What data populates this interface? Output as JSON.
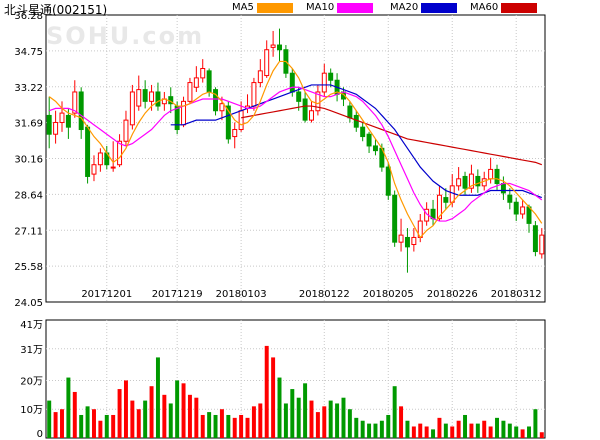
{
  "header": {
    "title": "北斗星通(002151)",
    "watermark": "SOHU.com"
  },
  "legend": [
    {
      "label": "MA5",
      "color": "#ff9900"
    },
    {
      "label": "MA10",
      "color": "#ff00ff"
    },
    {
      "label": "MA20",
      "color": "#0000cc"
    },
    {
      "label": "MA60",
      "color": "#cc0000"
    }
  ],
  "chart_data": {
    "type": "candlestick",
    "colors": {
      "up": "#ff0000",
      "down": "#009900",
      "ma5": "#ff9900",
      "ma10": "#ff00ff",
      "ma20": "#0000cc",
      "ma60": "#cc0000"
    },
    "price_axis": {
      "ylim": [
        24.05,
        36.28
      ],
      "ticks": [
        "36.28",
        "34.75",
        "33.22",
        "31.69",
        "30.16",
        "28.64",
        "27.11",
        "25.58",
        "24.05"
      ]
    },
    "volume_axis": {
      "ylim": [
        0,
        41
      ],
      "ticks": [
        {
          "v": 41,
          "label": "41万"
        },
        {
          "v": 31,
          "label": "31万"
        },
        {
          "v": 20,
          "label": "20万"
        },
        {
          "v": 10,
          "label": "10万"
        },
        {
          "v": 0,
          "label": "0"
        }
      ]
    },
    "date_ticks": [
      {
        "index": 9,
        "label": "20171201"
      },
      {
        "index": 20,
        "label": "20171219"
      },
      {
        "index": 30,
        "label": "20180103"
      },
      {
        "index": 43,
        "label": "20180122"
      },
      {
        "index": 53,
        "label": "20180205"
      },
      {
        "index": 63,
        "label": "20180226"
      },
      {
        "index": 73,
        "label": "20180312"
      }
    ],
    "candles": [
      [
        32.0,
        31.2,
        32.8,
        30.6
      ],
      [
        31.2,
        31.7,
        32.2,
        30.8
      ],
      [
        31.7,
        32.1,
        32.6,
        31.3
      ],
      [
        32.0,
        31.5,
        32.3,
        31.0
      ],
      [
        32.1,
        33.0,
        33.5,
        31.9
      ],
      [
        33.0,
        31.4,
        33.2,
        31.0
      ],
      [
        31.5,
        29.4,
        31.6,
        29.1
      ],
      [
        29.5,
        29.9,
        30.3,
        29.2
      ],
      [
        29.9,
        30.4,
        30.6,
        29.6
      ],
      [
        30.4,
        29.9,
        30.7,
        29.7
      ],
      [
        29.8,
        29.8,
        30.9,
        29.6
      ],
      [
        29.9,
        30.9,
        31.2,
        29.8
      ],
      [
        30.9,
        31.8,
        32.2,
        30.7
      ],
      [
        31.6,
        33.0,
        33.3,
        31.4
      ],
      [
        32.4,
        33.1,
        33.7,
        32.2
      ],
      [
        33.1,
        32.6,
        33.5,
        32.3
      ],
      [
        32.6,
        33.0,
        33.3,
        32.2
      ],
      [
        33.0,
        32.4,
        33.4,
        32.2
      ],
      [
        32.5,
        32.7,
        33.0,
        32.2
      ],
      [
        32.8,
        32.5,
        33.2,
        32.1
      ],
      [
        32.4,
        31.4,
        32.6,
        31.2
      ],
      [
        31.6,
        32.6,
        32.8,
        31.5
      ],
      [
        32.6,
        33.4,
        33.6,
        32.5
      ],
      [
        33.2,
        33.6,
        34.1,
        33.0
      ],
      [
        33.6,
        34.0,
        34.4,
        33.4
      ],
      [
        33.9,
        33.0,
        34.0,
        32.8
      ],
      [
        33.1,
        32.2,
        33.2,
        32.0
      ],
      [
        32.2,
        32.5,
        32.8,
        31.8
      ],
      [
        32.4,
        31.0,
        32.6,
        30.8
      ],
      [
        31.1,
        31.4,
        31.7,
        30.6
      ],
      [
        31.4,
        32.2,
        32.6,
        31.3
      ],
      [
        32.3,
        32.4,
        32.9,
        32.1
      ],
      [
        32.4,
        33.4,
        33.6,
        32.2
      ],
      [
        33.4,
        33.9,
        34.4,
        33.2
      ],
      [
        33.7,
        34.8,
        35.2,
        33.6
      ],
      [
        34.9,
        35.0,
        35.6,
        34.5
      ],
      [
        35.0,
        34.8,
        35.7,
        34.3
      ],
      [
        34.8,
        33.8,
        35.0,
        33.6
      ],
      [
        33.8,
        33.0,
        34.0,
        32.8
      ],
      [
        33.0,
        32.6,
        33.2,
        32.2
      ],
      [
        32.7,
        31.8,
        33.0,
        31.7
      ],
      [
        31.8,
        32.2,
        32.6,
        31.7
      ],
      [
        32.2,
        33.0,
        33.3,
        32.0
      ],
      [
        33.0,
        33.8,
        34.2,
        32.8
      ],
      [
        33.8,
        33.5,
        34.0,
        33.2
      ],
      [
        33.5,
        32.9,
        33.8,
        32.6
      ],
      [
        33.0,
        32.7,
        33.2,
        32.4
      ],
      [
        32.4,
        31.9,
        32.6,
        31.7
      ],
      [
        32.0,
        31.5,
        32.2,
        31.3
      ],
      [
        31.5,
        31.1,
        31.7,
        30.9
      ],
      [
        31.2,
        30.7,
        31.3,
        30.4
      ],
      [
        30.7,
        30.5,
        31.0,
        30.3
      ],
      [
        30.6,
        29.8,
        30.8,
        29.6
      ],
      [
        29.8,
        28.6,
        30.0,
        28.4
      ],
      [
        28.6,
        26.6,
        28.8,
        26.4
      ],
      [
        26.6,
        26.9,
        27.6,
        26.2
      ],
      [
        26.8,
        26.4,
        27.2,
        25.3
      ],
      [
        26.5,
        26.8,
        27.2,
        26.2
      ],
      [
        26.8,
        27.5,
        27.8,
        26.6
      ],
      [
        27.5,
        28.0,
        28.3,
        27.3
      ],
      [
        28.0,
        27.6,
        28.4,
        27.3
      ],
      [
        27.6,
        28.6,
        29.0,
        27.5
      ],
      [
        28.5,
        28.3,
        28.9,
        28.0
      ],
      [
        28.3,
        29.0,
        29.5,
        28.1
      ],
      [
        29.0,
        29.3,
        29.8,
        28.8
      ],
      [
        29.4,
        28.9,
        29.6,
        28.6
      ],
      [
        28.9,
        29.5,
        29.9,
        28.7
      ],
      [
        29.4,
        29.0,
        29.7,
        28.7
      ],
      [
        29.0,
        29.3,
        29.6,
        28.8
      ],
      [
        29.3,
        29.7,
        30.2,
        29.1
      ],
      [
        29.7,
        29.1,
        29.9,
        28.8
      ],
      [
        29.1,
        28.7,
        29.4,
        28.4
      ],
      [
        28.6,
        28.3,
        28.9,
        28.0
      ],
      [
        28.3,
        27.8,
        28.5,
        27.5
      ],
      [
        27.8,
        28.1,
        28.4,
        27.6
      ],
      [
        28.1,
        27.4,
        28.2,
        27.0
      ],
      [
        27.3,
        26.2,
        27.5,
        26.0
      ],
      [
        26.1,
        26.9,
        27.2,
        25.9
      ]
    ],
    "ma5": [
      32.8,
      32.6,
      32.3,
      32.1,
      32.0,
      31.9,
      31.5,
      31.1,
      30.8,
      30.4,
      30.0,
      30.2,
      30.6,
      31.2,
      31.7,
      32.1,
      32.4,
      32.6,
      32.7,
      32.6,
      32.4,
      32.4,
      32.5,
      32.7,
      32.9,
      33.0,
      32.9,
      32.6,
      32.2,
      31.8,
      31.6,
      31.7,
      32.0,
      32.6,
      33.3,
      33.9,
      34.3,
      34.3,
      34.0,
      33.6,
      33.0,
      32.6,
      32.5,
      32.7,
      32.9,
      33.0,
      32.9,
      32.6,
      32.2,
      31.8,
      31.4,
      31.0,
      30.6,
      30.0,
      29.1,
      28.4,
      27.8,
      27.3,
      26.8,
      27.1,
      27.3,
      27.7,
      28.0,
      28.3,
      28.6,
      28.8,
      29.0,
      29.1,
      29.2,
      29.3,
      29.3,
      29.2,
      29.0,
      28.7,
      28.4,
      28.1,
      27.8,
      27.4
    ],
    "ma10": [
      32.2,
      32.3,
      32.3,
      32.3,
      32.2,
      32.0,
      31.8,
      31.6,
      31.4,
      31.2,
      31.0,
      30.8,
      30.7,
      30.8,
      31.0,
      31.2,
      31.4,
      31.7,
      32.0,
      32.2,
      32.3,
      32.4,
      32.5,
      32.6,
      32.7,
      32.7,
      32.7,
      32.7,
      32.6,
      32.5,
      32.4,
      32.3,
      32.3,
      32.4,
      32.6,
      32.8,
      33.0,
      33.1,
      33.2,
      33.2,
      33.1,
      33.0,
      32.9,
      32.8,
      32.8,
      32.9,
      33.0,
      32.9,
      32.8,
      32.6,
      32.3,
      32.0,
      31.6,
      31.1,
      30.5,
      29.9,
      29.3,
      28.7,
      28.2,
      27.8,
      27.6,
      27.5,
      27.5,
      27.6,
      27.8,
      28.0,
      28.3,
      28.5,
      28.7,
      28.9,
      29.0,
      29.1,
      29.1,
      29.0,
      28.9,
      28.8,
      28.6,
      28.4
    ],
    "ma20": [
      null,
      null,
      null,
      null,
      null,
      null,
      null,
      null,
      null,
      null,
      null,
      null,
      null,
      null,
      null,
      null,
      null,
      null,
      null,
      31.6,
      31.6,
      31.6,
      31.7,
      31.8,
      31.8,
      31.8,
      31.8,
      31.9,
      32.0,
      32.1,
      32.2,
      32.3,
      32.4,
      32.5,
      32.6,
      32.7,
      32.8,
      32.9,
      33.0,
      33.1,
      33.2,
      33.3,
      33.3,
      33.3,
      33.3,
      33.2,
      33.1,
      33.0,
      32.9,
      32.7,
      32.5,
      32.3,
      32.0,
      31.7,
      31.4,
      31.0,
      30.6,
      30.2,
      29.8,
      29.5,
      29.2,
      29.0,
      28.8,
      28.7,
      28.6,
      28.6,
      28.6,
      28.6,
      28.7,
      28.8,
      28.8,
      28.8,
      28.8,
      28.8,
      28.8,
      28.7,
      28.6,
      28.5
    ],
    "ma60": [
      null,
      null,
      null,
      null,
      null,
      null,
      null,
      null,
      null,
      null,
      null,
      null,
      null,
      null,
      null,
      null,
      null,
      null,
      null,
      null,
      null,
      null,
      null,
      null,
      null,
      null,
      null,
      null,
      null,
      null,
      31.9,
      31.95,
      32.0,
      32.05,
      32.1,
      32.15,
      32.2,
      32.25,
      32.3,
      32.35,
      32.4,
      32.4,
      32.35,
      32.3,
      32.2,
      32.1,
      32.0,
      31.9,
      31.8,
      31.7,
      31.6,
      31.5,
      31.4,
      31.3,
      31.2,
      31.1,
      31.0,
      30.95,
      30.9,
      30.85,
      30.8,
      30.75,
      30.7,
      30.65,
      30.6,
      30.55,
      30.5,
      30.45,
      30.4,
      30.35,
      30.3,
      30.25,
      30.2,
      30.15,
      30.1,
      30.05,
      30.0,
      29.9
    ],
    "volume": [
      13,
      9,
      10,
      21,
      16,
      8,
      11,
      10,
      6,
      8,
      8,
      17,
      20,
      13,
      10,
      13,
      18,
      28,
      15,
      12,
      20,
      19,
      15,
      14,
      8,
      9,
      8,
      10,
      8,
      7,
      8,
      7,
      11,
      12,
      32,
      28,
      21,
      12,
      17,
      14,
      19,
      13,
      9,
      11,
      13,
      12,
      14,
      10,
      7,
      6,
      5,
      5,
      6,
      8,
      18,
      11,
      6,
      4,
      5,
      4,
      3,
      7,
      5,
      4,
      6,
      8,
      5,
      5,
      6,
      4,
      7,
      6,
      5,
      4,
      3,
      4,
      10,
      2
    ]
  }
}
